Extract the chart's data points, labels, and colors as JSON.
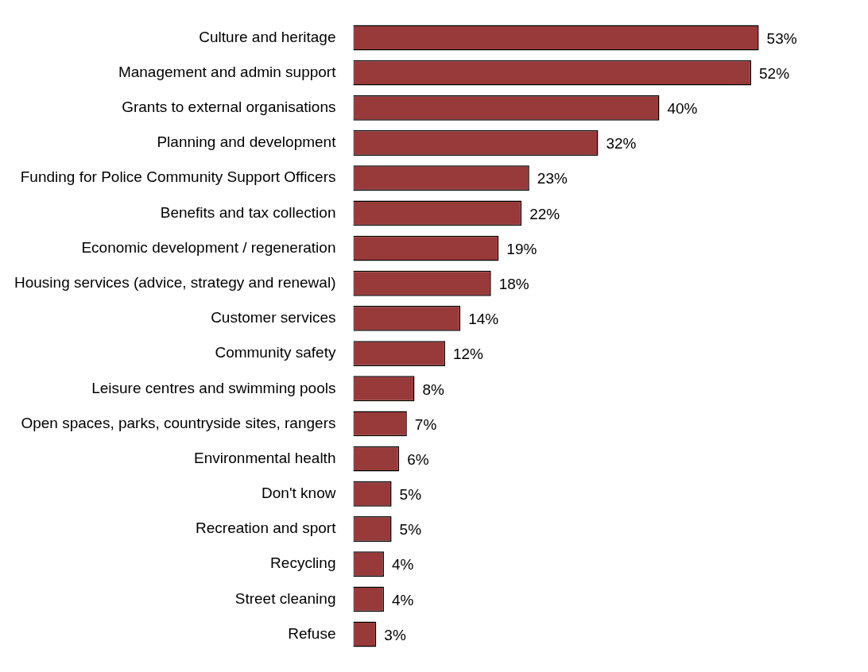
{
  "chart_data": {
    "type": "bar",
    "orientation": "horizontal",
    "tick_labels": "y",
    "color": "#993a3a",
    "categories": [
      "Culture and heritage",
      "Management and admin support",
      "Grants to external organisations",
      "Planning and development",
      "Funding for Police Community Support Officers",
      "Benefits and tax collection",
      "Economic development / regeneration",
      "Housing services (advice, strategy and renewal)",
      "Customer services",
      "Community safety",
      "Leisure centres and swimming pools",
      "Open spaces, parks, countryside sites, rangers",
      "Environmental health",
      "Don't know",
      "Recreation and sport",
      "Recycling",
      "Street cleaning",
      "Refuse"
    ],
    "values": [
      53,
      52,
      40,
      32,
      23,
      22,
      19,
      18,
      14,
      12,
      8,
      7,
      6,
      5,
      5,
      4,
      4,
      3
    ],
    "value_labels": [
      "53%",
      "52%",
      "40%",
      "32%",
      "23%",
      "22%",
      "19%",
      "18%",
      "14%",
      "12%",
      "8%",
      "7%",
      "6%",
      "5%",
      "5%",
      "4%",
      "4%",
      "3%"
    ]
  }
}
